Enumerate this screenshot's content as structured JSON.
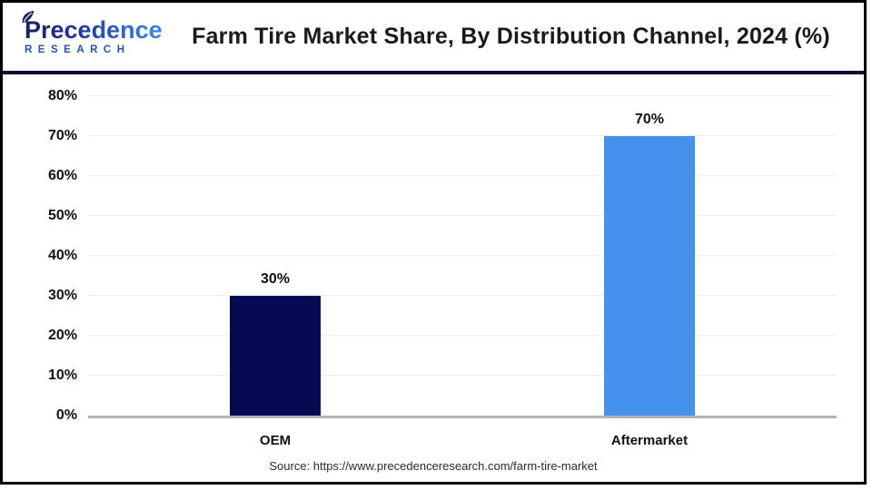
{
  "header": {
    "logo": {
      "name": "Precedence",
      "subname": "RESEARCH"
    },
    "title": "Farm Tire Market Share, By Distribution Channel, 2024 (%)"
  },
  "chart_data": {
    "type": "bar",
    "title": "Farm Tire Market Share, By Distribution Channel, 2024 (%)",
    "categories": [
      "OEM",
      "Aftermarket"
    ],
    "values": [
      30,
      70
    ],
    "value_labels": [
      "30%",
      "70%"
    ],
    "bar_colors": [
      "#050a52",
      "#4691ec"
    ],
    "ylim": [
      0,
      80
    ],
    "ytick_step": 10,
    "ytick_labels": [
      "0%",
      "10%",
      "20%",
      "30%",
      "40%",
      "50%",
      "60%",
      "70%",
      "80%"
    ],
    "grid": true,
    "legend": false,
    "xlabel": "",
    "ylabel": ""
  },
  "source": "Source: https://www.precedenceresearch.com/farm-tire-market",
  "colors": {
    "bar_oem": "#050a52",
    "bar_aftermarket": "#4691ec",
    "gridline": "#f0f0f0",
    "axis_line": "#b3b3b3",
    "header_separator": "#0d0d33",
    "frame_border": "#000000",
    "logo_navy": "#151f63",
    "logo_blue": "#3f86e8",
    "logo_sub_blue": "#2553a8"
  }
}
